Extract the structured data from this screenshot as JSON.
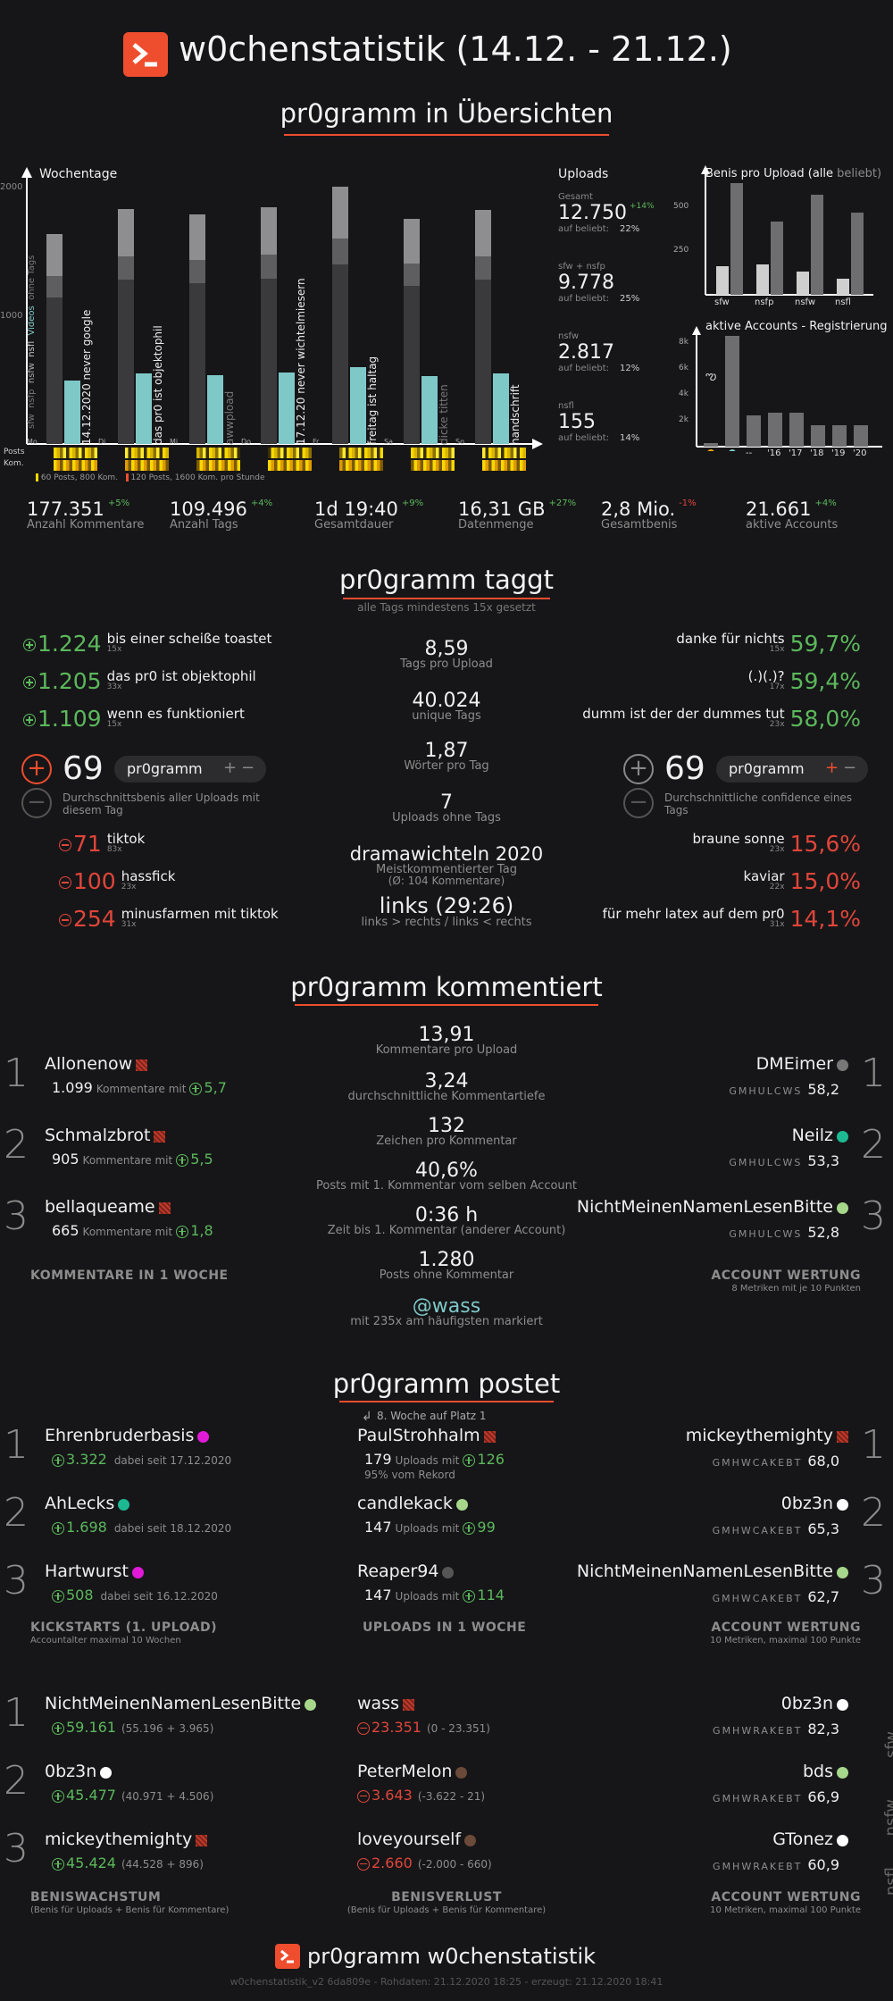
{
  "header": {
    "title": "w0chenstatistik (14.12. - 21.12.)"
  },
  "uebersicht": {
    "title": "pr0gramm in Übersichten",
    "wochentage": {
      "label": "Wochentage",
      "y_ticks": [
        "2000",
        "1000"
      ],
      "type_labels": [
        "sfw",
        "nsfp",
        "nsfw",
        "nsfl",
        "Videos",
        "ohne Tags"
      ],
      "days": [
        "Mo",
        "Di",
        "Mi",
        "Do",
        "Fr",
        "Sa",
        "So"
      ],
      "day_tags": [
        "14.12.2020 never google",
        "das pr0 ist objektophil",
        "awwpload",
        "17.12.20 never wichtelmiesern",
        "freitag ist haltag",
        "dicke titten",
        "handschrift"
      ],
      "posts_label": "Posts",
      "kom_label": "Kom.",
      "legend": [
        "60 Posts, 800 Kom.",
        "120 Posts, 1600 Kom. pro Stunde"
      ]
    },
    "uploads": {
      "title": "Uploads",
      "items": [
        {
          "label": "Gesamt",
          "value": "12.750",
          "delta": "+14%",
          "beliebt_label": "auf beliebt:",
          "beliebt": "22%"
        },
        {
          "label": "sfw + nsfp",
          "value": "9.778",
          "delta": "",
          "beliebt_label": "auf beliebt:",
          "beliebt": "25%"
        },
        {
          "label": "nsfw",
          "value": "2.817",
          "delta": "",
          "beliebt_label": "auf beliebt:",
          "beliebt": "12%"
        },
        {
          "label": "nsfl",
          "value": "155",
          "delta": "",
          "beliebt_label": "auf beliebt:",
          "beliebt": "14%"
        }
      ]
    },
    "benis_chart": {
      "title": "Benis pro Upload (alle",
      "title_suffix": "beliebt)",
      "y_ticks": [
        "500",
        "250"
      ],
      "categories": [
        "sfw",
        "nsfp",
        "nsfw",
        "nsfl"
      ]
    },
    "accounts_chart": {
      "title": "aktive Accounts - Registrierung",
      "y_ticks": [
        "8k",
        "6k",
        "4k",
        "2k"
      ],
      "categories": [
        "--",
        "'16",
        "'17",
        "'18",
        "'19",
        "'20"
      ]
    },
    "stats": [
      {
        "value": "177.351",
        "delta": "+5%",
        "delta_color": "green",
        "label": "Anzahl Kommentare"
      },
      {
        "value": "109.496",
        "delta": "+4%",
        "delta_color": "green",
        "label": "Anzahl Tags"
      },
      {
        "value": "1d 19:40",
        "delta": "+9%",
        "delta_color": "green",
        "label": "Gesamtdauer"
      },
      {
        "value": "16,31 GB",
        "delta": "+27%",
        "delta_color": "green",
        "label": "Datenmenge"
      },
      {
        "value": "2,8 Mio.",
        "delta": "-1%",
        "delta_color": "red",
        "label": "Gesamtbenis"
      },
      {
        "value": "21.661",
        "delta": "+4%",
        "delta_color": "green",
        "label": "aktive Accounts"
      }
    ]
  },
  "taggt": {
    "title": "pr0gramm taggt",
    "subtitle": "alle Tags mindestens 15x gesetzt",
    "top_left": [
      {
        "score": "1.224",
        "tag": "bis einer scheiße toastet",
        "count": "15x"
      },
      {
        "score": "1.205",
        "tag": "das pr0 ist objektophil",
        "count": "33x"
      },
      {
        "score": "1.109",
        "tag": "wenn es funktioniert",
        "count": "15x"
      }
    ],
    "bottom_left": [
      {
        "score": "71",
        "tag": "tiktok",
        "count": "83x"
      },
      {
        "score": "100",
        "tag": "hassfick",
        "count": "23x"
      },
      {
        "score": "254",
        "tag": "minusfarmen mit tiktok",
        "count": "31x"
      }
    ],
    "left_widget": {
      "value": "69",
      "tag": "pr0gramm",
      "caption": "Durchschnittsbenis aller Uploads mit diesem Tag"
    },
    "right_widget": {
      "value": "69",
      "tag": "pr0gramm",
      "caption": "Durchschnittliche confidence eines Tags"
    },
    "top_right": [
      {
        "tag": "danke für nichts",
        "count": "15x",
        "value": "59,7%"
      },
      {
        "tag": "(.)(.)?",
        "count": "17x",
        "value": "59,4%"
      },
      {
        "tag": "dumm ist der der dummes tut",
        "count": "23x",
        "value": "58,0%"
      }
    ],
    "bottom_right": [
      {
        "tag": "braune sonne",
        "count": "23x",
        "value": "15,6%"
      },
      {
        "tag": "kaviar",
        "count": "22x",
        "value": "15,0%"
      },
      {
        "tag": "für mehr latex auf dem pr0",
        "count": "31x",
        "value": "14,1%"
      }
    ],
    "center": [
      {
        "value": "8,59",
        "label": "Tags pro Upload"
      },
      {
        "value": "40.024",
        "label": "unique Tags"
      },
      {
        "value": "1,87",
        "label": "Wörter pro Tag"
      },
      {
        "value": "7",
        "label": "Uploads ohne Tags"
      }
    ],
    "meistkommentiert": {
      "value": "dramawichteln 2020",
      "label": "Meistkommentierter Tag",
      "sub": "(Ø: 104 Kommentare)"
    },
    "links": {
      "value": "links (29:26)",
      "label": "links > rechts / links < rechts"
    }
  },
  "kommentiert": {
    "title": "pr0gramm kommentiert",
    "left": [
      {
        "rank": "1",
        "name": "Allonenow",
        "count": "1.099",
        "mid": "Kommentare mit",
        "score": "5,7"
      },
      {
        "rank": "2",
        "name": "Schmalzbrot",
        "count": "905",
        "mid": "Kommentare mit",
        "score": "5,5"
      },
      {
        "rank": "3",
        "name": "bellaqueame",
        "count": "665",
        "mid": "Kommentare mit",
        "score": "1,8"
      }
    ],
    "left_caption": "KOMMENTARE IN 1 WOCHE",
    "right": [
      {
        "rank": "1",
        "name": "DMEimer",
        "dot": "#777777",
        "letters": "GMHULCWS",
        "value": "58,2"
      },
      {
        "rank": "2",
        "name": "Neilz",
        "dot": "#1db992",
        "letters": "GMHULCWS",
        "value": "53,3"
      },
      {
        "rank": "3",
        "name": "NichtMeinenNamenLesenBitte",
        "dot": "#a7d78b",
        "letters": "GMHULCWS",
        "value": "52,8"
      }
    ],
    "right_caption": "ACCOUNT WERTUNG",
    "right_sub": "8 Metriken mit je 10 Punkten",
    "center": [
      {
        "value": "13,91",
        "label": "Kommentare pro Upload"
      },
      {
        "value": "3,24",
        "label": "durchschnittliche Kommentartiefe"
      },
      {
        "value": "132",
        "label": "Zeichen pro Kommentar"
      },
      {
        "value": "40,6%",
        "label": "Posts mit 1. Kommentar vom selben Account"
      },
      {
        "value": "0:36 h",
        "label": "Zeit bis 1. Kommentar (anderer Account)"
      },
      {
        "value": "1.280",
        "label": "Posts ohne Kommentar"
      }
    ],
    "mention": {
      "value": "@wass",
      "label": "mit 235x am häufigsten markiert"
    }
  },
  "postet": {
    "title": "pr0gramm postet",
    "note": "8. Woche auf Platz 1",
    "kick": [
      {
        "rank": "1",
        "name": "Ehrenbruderbasis",
        "dot": "#e01ad8",
        "score": "3.322",
        "since": "dabei seit 17.12.2020"
      },
      {
        "rank": "2",
        "name": "AhLecks",
        "dot": "#1db992",
        "score": "1.698",
        "since": "dabei seit 18.12.2020"
      },
      {
        "rank": "3",
        "name": "Hartwurst",
        "dot": "#e01ad8",
        "score": "508",
        "since": "dabei seit 16.12.2020"
      }
    ],
    "kick_caption": "KICKSTARTS (1. UPLOAD)",
    "kick_sub": "Accountalter maximal 10 Wochen",
    "uploads": [
      {
        "name": "PaulStrohhalm",
        "mark": "sq",
        "count": "179",
        "mid": "Uploads mit",
        "score": "126",
        "extra": "95% vom Rekord"
      },
      {
        "name": "candlekack",
        "mark": "#a7d78b",
        "count": "147",
        "mid": "Uploads mit",
        "score": "99",
        "extra": ""
      },
      {
        "name": "Reaper94",
        "mark": "#555555",
        "count": "147",
        "mid": "Uploads mit",
        "score": "114",
        "extra": ""
      }
    ],
    "uploads_caption": "UPLOADS IN 1 WOCHE",
    "wertung": [
      {
        "rank": "1",
        "name": "mickeythemighty",
        "mark": "sq",
        "letters": "GMHWCAKEBT",
        "value": "68,0"
      },
      {
        "rank": "2",
        "name": "0bz3n",
        "mark": "#ffffff",
        "letters": "GMHWCAKEBT",
        "value": "65,3"
      },
      {
        "rank": "3",
        "name": "NichtMeinenNamenLesenBitte",
        "mark": "#a7d78b",
        "letters": "GMHWCAKEBT",
        "value": "62,7"
      }
    ],
    "wertung_caption": "ACCOUNT WERTUNG",
    "wertung_sub": "10 Metriken, maximal 100 Punkte"
  },
  "benis": {
    "wachstum": [
      {
        "rank": "1",
        "name": "NichtMeinenNamenLesenBitte",
        "mark": "#a7d78b",
        "score": "59.161",
        "detail": "(55.196 + 3.965)"
      },
      {
        "rank": "2",
        "name": "0bz3n",
        "mark": "#ffffff",
        "score": "45.477",
        "detail": "(40.971 + 4.506)"
      },
      {
        "rank": "3",
        "name": "mickeythemighty",
        "mark": "sq",
        "score": "45.424",
        "detail": "(44.528 + 896)"
      }
    ],
    "wachstum_caption": "BENISWACHSTUM",
    "wachstum_sub": "(Benis für Uploads + Benis für Kommentare)",
    "verlust": [
      {
        "name": "wass",
        "mark": "sq",
        "score": "23.351",
        "detail": "(0 - 23.351)"
      },
      {
        "name": "PeterMelon",
        "mark": "#6b4a3a",
        "score": "3.643",
        "detail": "(-3.622 - 21)"
      },
      {
        "name": "loveyourself",
        "mark": "#6b4a3a",
        "score": "2.660",
        "detail": "(-2.000 - 660)"
      }
    ],
    "verlust_caption": "BENISVERLUST",
    "verlust_sub": "(Benis für Uploads + Benis für Kommentare)",
    "wertung": [
      {
        "name": "0bz3n",
        "mark": "#ffffff",
        "letters": "GMHWRAKEBT",
        "value": "82,3",
        "side": "sfw"
      },
      {
        "name": "bds",
        "mark": "#a7d78b",
        "letters": "GMHWRAKEBT",
        "value": "66,9",
        "side": "nsfw"
      },
      {
        "name": "GTonez",
        "mark": "#ffffff",
        "letters": "GMHWRAKEBT",
        "value": "60,9",
        "side": "nsfl"
      }
    ],
    "wertung_caption": "ACCOUNT WERTUNG",
    "wertung_sub": "10 Metriken, maximal 100 Punkte"
  },
  "footer": {
    "title": "pr0gramm w0chenstatistik",
    "meta": "w0chenstatistik_v2 6da809e - Rohdaten: 21.12.2020 18:25 - erzeugt: 21.12.2020 18:41"
  },
  "colors": {
    "accent": "#ee4d2e",
    "green": "#5cb85c",
    "red": "#e0453a",
    "teal": "#7fc8c8"
  }
}
